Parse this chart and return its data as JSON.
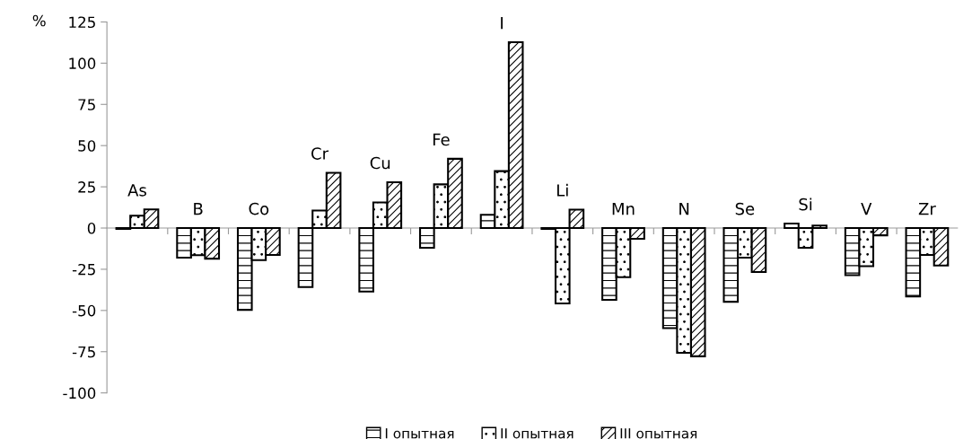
{
  "chart_data": {
    "type": "bar",
    "ylabel": "%",
    "categories": [
      "As",
      "B",
      "Co",
      "Cr",
      "Cu",
      "Fe",
      "I",
      "Li",
      "Mn",
      "N",
      "Se",
      "Si",
      "V",
      "Zr"
    ],
    "series": [
      {
        "name": "I опытная",
        "color": "#000000",
        "values": [
          -0.5,
          -18,
          -49.6,
          -35.8,
          -38.5,
          -12,
          8,
          -0.5,
          -43.6,
          -60.7,
          -44.7,
          2.7,
          -28.6,
          -41.5
        ]
      },
      {
        "name": "II опытная",
        "color": "#000000",
        "values": [
          7.5,
          -16.5,
          -19.5,
          10.6,
          15.5,
          26.5,
          34.5,
          -45.7,
          -29.8,
          -75.7,
          -18,
          -12,
          -23.1,
          -16.3
        ]
      },
      {
        "name": "III опытная",
        "color": "#000000",
        "values": [
          11.3,
          -18.6,
          -16.3,
          33.5,
          27.8,
          42,
          112.7,
          11.2,
          -6.5,
          -77.8,
          -26.7,
          1.5,
          -4.4,
          -22.7
        ]
      }
    ],
    "ylim": [
      -100,
      125
    ],
    "yticks": [
      -100,
      -75,
      -50,
      -25,
      0,
      25,
      50,
      75,
      100,
      125
    ],
    "grid": false,
    "legend": "bottom"
  }
}
